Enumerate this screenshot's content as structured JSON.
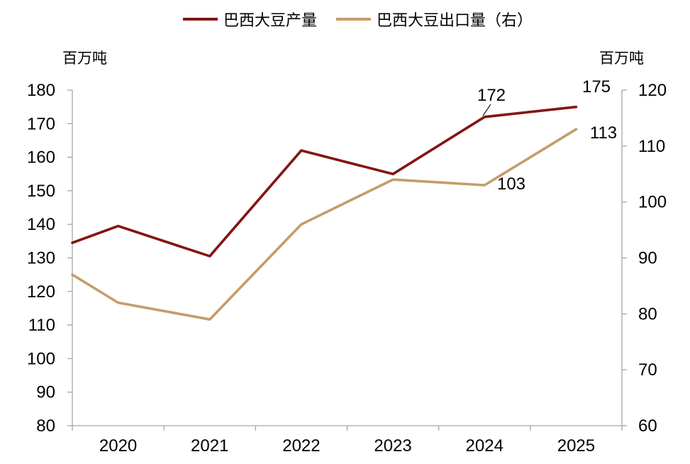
{
  "legend": {
    "items": [
      {
        "label": "巴西大豆产量",
        "color": "#821513"
      },
      {
        "label": "巴西大豆出口量（右）",
        "color": "#C59C6A"
      }
    ]
  },
  "colors": {
    "production_line": "#821513",
    "export_line": "#C59C6A",
    "axis": "#A6A6A6",
    "text": "#000000"
  },
  "chart_data": {
    "type": "line",
    "title": "",
    "categories": [
      "2020",
      "2021",
      "2022",
      "2023",
      "2024",
      "2025"
    ],
    "series": [
      {
        "name": "巴西大豆产量",
        "axis": "left",
        "color": "#821513",
        "edge_start_value": 134.5,
        "values": [
          139.5,
          130.5,
          162,
          155,
          172,
          175
        ]
      },
      {
        "name": "巴西大豆出口量（右）",
        "axis": "right",
        "color": "#C59C6A",
        "edge_start_value": 87,
        "values": [
          82,
          79,
          96,
          104,
          103,
          113
        ]
      }
    ],
    "left_axis": {
      "label": "百万吨",
      "min": 80,
      "max": 180,
      "tick_step": 10,
      "ticks": [
        180,
        170,
        160,
        150,
        140,
        130,
        120,
        110,
        100,
        90,
        80
      ]
    },
    "right_axis": {
      "label": "百万吨",
      "min": 60,
      "max": 120,
      "tick_step": 10,
      "ticks": [
        120,
        110,
        100,
        90,
        80,
        70,
        60
      ]
    },
    "annotations": [
      {
        "text": "172",
        "series": 0,
        "category": "2024",
        "has_leader_line": true
      },
      {
        "text": "175",
        "series": 0,
        "category": "2025",
        "has_leader_line": false
      },
      {
        "text": "103",
        "series": 1,
        "category": "2024",
        "has_leader_line": false
      },
      {
        "text": "113",
        "series": 1,
        "category": "2025",
        "has_leader_line": false
      }
    ],
    "grid": false,
    "legend_position": "top"
  }
}
